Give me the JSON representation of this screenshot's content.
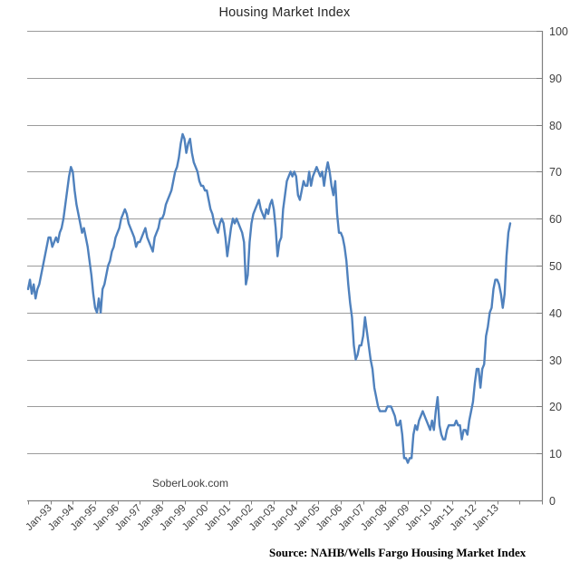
{
  "chart_data": {
    "type": "line",
    "title": "Housing Market Index",
    "series_name": "NAHB/Wells Fargo Housing Market Index",
    "frequency": "monthly",
    "points_start_label": "Jan-92",
    "points_end_label": "Aug-13",
    "ylim": [
      0,
      100
    ],
    "y_ticks": [
      "0",
      "10",
      "20",
      "30",
      "40",
      "50",
      "60",
      "70",
      "80",
      "90",
      "100"
    ],
    "x_tick_labels": [
      "Jan-93",
      "Jan-94",
      "Jan-95",
      "Jan-96",
      "Jan-97",
      "Jan-98",
      "Jan-99",
      "Jan-00",
      "Jan-01",
      "Jan-02",
      "Jan-03",
      "Jan-04",
      "Jan-05",
      "Jan-06",
      "Jan-07",
      "Jan-08",
      "Jan-09",
      "Jan-10",
      "Jan-11",
      "Jan-12",
      "Jan-13"
    ],
    "legend_position": "none",
    "grid": "horizontal",
    "line_color": "#4F81BD",
    "gridline_color": "#9b9b9b",
    "axis_color": "#7f7f7f",
    "label_color": "#404040",
    "values": [
      45,
      47,
      44,
      46,
      43,
      45,
      46,
      48,
      50,
      52,
      54,
      56,
      56,
      54,
      55,
      56,
      55,
      57,
      58,
      60,
      63,
      66,
      69,
      71,
      70,
      66,
      63,
      61,
      59,
      57,
      58,
      56,
      54,
      51,
      48,
      44,
      41,
      40,
      43,
      40,
      45,
      46,
      48,
      50,
      51,
      53,
      54,
      56,
      57,
      58,
      60,
      61,
      62,
      61,
      59,
      58,
      57,
      56,
      54,
      55,
      55,
      56,
      57,
      58,
      56,
      55,
      54,
      53,
      56,
      57,
      58,
      60,
      60,
      61,
      63,
      64,
      65,
      66,
      68,
      70,
      71,
      73,
      76,
      78,
      77,
      74,
      76,
      77,
      74,
      72,
      71,
      70,
      68,
      67,
      67,
      66,
      66,
      64,
      62,
      61,
      59,
      58,
      57,
      59,
      60,
      59,
      56,
      52,
      55,
      58,
      60,
      59,
      60,
      59,
      58,
      57,
      55,
      46,
      48,
      55,
      59,
      61,
      62,
      63,
      64,
      62,
      61,
      60,
      62,
      61,
      63,
      64,
      62,
      58,
      52,
      55,
      56,
      62,
      65,
      68,
      69,
      70,
      69,
      70,
      69,
      65,
      64,
      66,
      68,
      67,
      67,
      70,
      67,
      69,
      70,
      71,
      70,
      69,
      70,
      67,
      70,
      72,
      70,
      67,
      65,
      68,
      61,
      57,
      57,
      56,
      54,
      51,
      46,
      42,
      39,
      33,
      30,
      31,
      33,
      33,
      35,
      39,
      36,
      33,
      30,
      28,
      24,
      22,
      20,
      19,
      19,
      19,
      19,
      20,
      20,
      20,
      19,
      18,
      16,
      16,
      17,
      14,
      9,
      9,
      8,
      9,
      9,
      14,
      16,
      15,
      17,
      18,
      19,
      18,
      17,
      16,
      15,
      17,
      15,
      19,
      22,
      16,
      14,
      13,
      13,
      15,
      16,
      16,
      16,
      16,
      17,
      16,
      16,
      13,
      15,
      15,
      14,
      17,
      19,
      21,
      25,
      28,
      28,
      24,
      28,
      29,
      35,
      37,
      40,
      41,
      45,
      47,
      47,
      46,
      44,
      41,
      44,
      52,
      57,
      59
    ]
  },
  "watermark": {
    "text": "SoberLook.com"
  },
  "source": {
    "text": "Source: NAHB/Wells Fargo Housing Market Index"
  }
}
